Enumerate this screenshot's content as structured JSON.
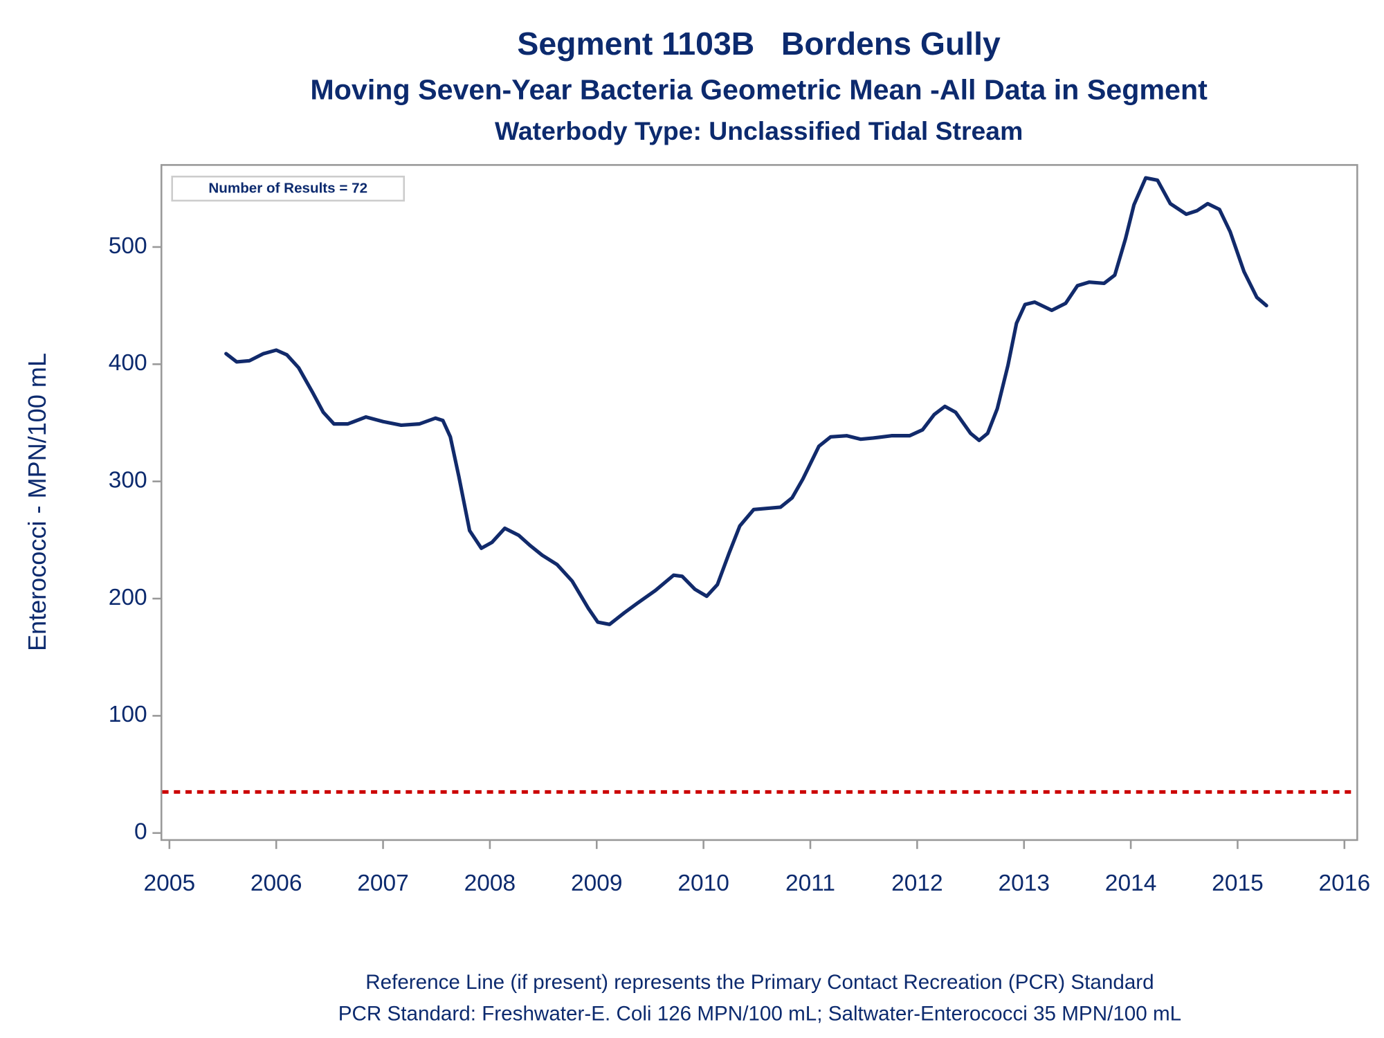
{
  "chart_data": {
    "type": "line",
    "title": "Segment 1103B   Bordens Gully",
    "subtitle": "Moving Seven-Year Bacteria Geometric Mean -All Data in Segment",
    "subtitle2": "Waterbody Type: Unclassified Tidal Stream",
    "ylabel": "Enterococci - MPN/100 mL",
    "annotation": "Number of Results = 72",
    "notes": [
      "Reference Line (if present) represents the Primary Contact Recreation (PCR) Standard",
      "PCR Standard: Freshwater-E. Coli 126 MPN/100 mL; Saltwater-Enterococci 35 MPN/100 mL"
    ],
    "color": "#112a6b",
    "x": [
      2005.53,
      2005.63,
      2005.75,
      2005.88,
      2006.0,
      2006.1,
      2006.21,
      2006.34,
      2006.44,
      2006.54,
      2006.67,
      2006.84,
      2007.0,
      2007.17,
      2007.34,
      2007.49,
      2007.56,
      2007.63,
      2007.71,
      2007.81,
      2007.92,
      2008.02,
      2008.14,
      2008.27,
      2008.38,
      2008.49,
      2008.63,
      2008.77,
      2008.92,
      2009.01,
      2009.12,
      2009.26,
      2009.38,
      2009.55,
      2009.72,
      2009.8,
      2009.92,
      2010.03,
      2010.13,
      2010.24,
      2010.34,
      2010.47,
      2010.59,
      2010.72,
      2010.83,
      2010.93,
      2011.08,
      2011.19,
      2011.34,
      2011.47,
      2011.59,
      2011.76,
      2011.93,
      2012.05,
      2012.16,
      2012.26,
      2012.36,
      2012.5,
      2012.58,
      2012.66,
      2012.75,
      2012.85,
      2012.93,
      2013.01,
      2013.1,
      2013.26,
      2013.39,
      2013.5,
      2013.61,
      2013.75,
      2013.85,
      2013.95,
      2014.03,
      2014.14,
      2014.25,
      2014.37,
      2014.52,
      2014.62,
      2014.72,
      2014.83,
      2014.93,
      2015.06,
      2015.18,
      2015.27
    ],
    "values": [
      409,
      402,
      403,
      409,
      412,
      408,
      397,
      376,
      359,
      349,
      349,
      355,
      351,
      348,
      349,
      354,
      352,
      338,
      304,
      258,
      243,
      248,
      260,
      254,
      245,
      237,
      229,
      215,
      192,
      180,
      178,
      188,
      196,
      207,
      220,
      219,
      208,
      202,
      212,
      239,
      262,
      276,
      277,
      278,
      286,
      302,
      330,
      338,
      339,
      336,
      337,
      339,
      339,
      344,
      357,
      364,
      359,
      341,
      335,
      341,
      362,
      399,
      435,
      451,
      453,
      446,
      452,
      467,
      470,
      469,
      476,
      507,
      536,
      559,
      557,
      537,
      528,
      531,
      537,
      532,
      513,
      479,
      457,
      450
    ],
    "reference_line": {
      "value": 35,
      "color": "#cc0000"
    },
    "xlim": [
      2004.925,
      2016.12
    ],
    "xticks": [
      2005,
      2006,
      2007,
      2008,
      2009,
      2010,
      2011,
      2012,
      2013,
      2014,
      2015,
      2016
    ],
    "ylim": [
      -6,
      570
    ],
    "yticks": [
      0,
      100,
      200,
      300,
      400,
      500
    ]
  }
}
